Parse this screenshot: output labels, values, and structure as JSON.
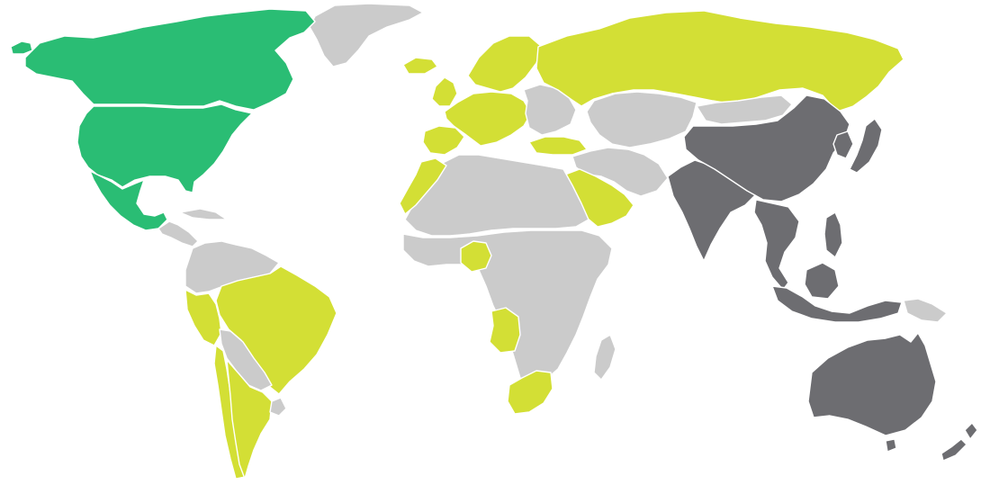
{
  "map": {
    "type": "choropleth-world",
    "legend": "none",
    "colors": {
      "green": "#2abd74",
      "lime": "#d3df35",
      "dark": "#6d6d71",
      "gray": "#cbcbcb",
      "background": "#ffffff"
    },
    "regions": [
      {
        "id": "greenland",
        "group": "gray"
      },
      {
        "id": "canada",
        "group": "green"
      },
      {
        "id": "usa",
        "group": "green"
      },
      {
        "id": "alaska",
        "group": "green"
      },
      {
        "id": "mexico",
        "group": "green"
      },
      {
        "id": "central-america",
        "group": "gray"
      },
      {
        "id": "caribbean",
        "group": "gray"
      },
      {
        "id": "northern-south-america",
        "group": "gray"
      },
      {
        "id": "peru",
        "group": "lime"
      },
      {
        "id": "brazil",
        "group": "lime"
      },
      {
        "id": "bolivia-paraguay",
        "group": "gray"
      },
      {
        "id": "chile",
        "group": "lime"
      },
      {
        "id": "argentina",
        "group": "lime"
      },
      {
        "id": "uruguay",
        "group": "gray"
      },
      {
        "id": "iceland",
        "group": "lime"
      },
      {
        "id": "uk-ireland",
        "group": "lime"
      },
      {
        "id": "scandinavia",
        "group": "lime"
      },
      {
        "id": "western-europe",
        "group": "lime"
      },
      {
        "id": "iberia",
        "group": "lime"
      },
      {
        "id": "eastern-europe",
        "group": "gray"
      },
      {
        "id": "turkey",
        "group": "lime"
      },
      {
        "id": "russia",
        "group": "lime"
      },
      {
        "id": "central-asia",
        "group": "gray"
      },
      {
        "id": "middle-east",
        "group": "gray"
      },
      {
        "id": "saudi-arabia",
        "group": "lime"
      },
      {
        "id": "north-africa",
        "group": "gray"
      },
      {
        "id": "morocco",
        "group": "lime"
      },
      {
        "id": "sub-saharan-africa",
        "group": "gray"
      },
      {
        "id": "nigeria",
        "group": "lime"
      },
      {
        "id": "angola",
        "group": "lime"
      },
      {
        "id": "south-africa",
        "group": "lime"
      },
      {
        "id": "madagascar",
        "group": "gray"
      },
      {
        "id": "china",
        "group": "dark"
      },
      {
        "id": "india",
        "group": "dark"
      },
      {
        "id": "mongolia",
        "group": "gray"
      },
      {
        "id": "southeast-asia",
        "group": "dark"
      },
      {
        "id": "indonesia",
        "group": "dark"
      },
      {
        "id": "papua",
        "group": "gray"
      },
      {
        "id": "japan",
        "group": "dark"
      },
      {
        "id": "korea",
        "group": "dark"
      },
      {
        "id": "philippines",
        "group": "dark"
      },
      {
        "id": "australia",
        "group": "dark"
      },
      {
        "id": "new-zealand",
        "group": "dark"
      }
    ]
  }
}
